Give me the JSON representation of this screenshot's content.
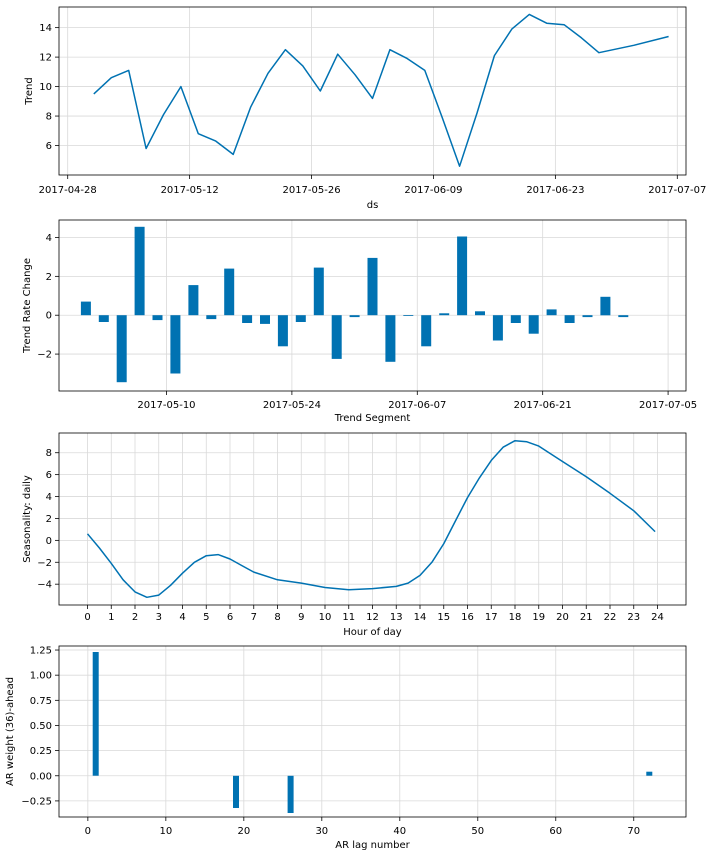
{
  "colors": {
    "series": "#0072B2",
    "grid": "#d9d9d9",
    "axis": "#000000"
  },
  "chart_data": [
    {
      "id": "trend",
      "type": "line",
      "xlabel": "ds",
      "ylabel": "Trend",
      "x_type": "date",
      "xlim": [
        "2017-04-27",
        "2017-07-08"
      ],
      "ylim": [
        4.0,
        15.4
      ],
      "xticks": [
        "2017-04-28",
        "2017-05-12",
        "2017-05-26",
        "2017-06-09",
        "2017-06-23",
        "2017-07-07"
      ],
      "yticks": [
        6,
        8,
        10,
        12,
        14
      ],
      "grid": true,
      "x": [
        "2017-05-01",
        "2017-05-03",
        "2017-05-05",
        "2017-05-07",
        "2017-05-09",
        "2017-05-11",
        "2017-05-13",
        "2017-05-15",
        "2017-05-17",
        "2017-05-19",
        "2017-05-21",
        "2017-05-23",
        "2017-05-25",
        "2017-05-27",
        "2017-05-29",
        "2017-05-31",
        "2017-06-02",
        "2017-06-04",
        "2017-06-06",
        "2017-06-08",
        "2017-06-10",
        "2017-06-12",
        "2017-06-14",
        "2017-06-16",
        "2017-06-18",
        "2017-06-20",
        "2017-06-22",
        "2017-06-24",
        "2017-06-26",
        "2017-06-28",
        "2017-07-02",
        "2017-07-06"
      ],
      "y": [
        9.5,
        10.6,
        11.1,
        5.8,
        8.1,
        10.0,
        6.8,
        6.3,
        5.4,
        8.6,
        10.9,
        12.5,
        11.4,
        9.7,
        12.2,
        10.8,
        9.2,
        12.5,
        11.9,
        11.1,
        7.9,
        4.6,
        8.2,
        12.1,
        13.9,
        14.9,
        14.3,
        14.2,
        13.3,
        12.3,
        12.8,
        13.4
      ]
    },
    {
      "id": "trend-rate-change",
      "type": "bar",
      "xlabel": "Trend Segment",
      "ylabel": "Trend Rate Change",
      "x_type": "date",
      "xlim": [
        "2017-04-28",
        "2017-07-07"
      ],
      "ylim": [
        -3.9,
        4.9
      ],
      "xticks": [
        "2017-05-10",
        "2017-05-24",
        "2017-06-07",
        "2017-06-21",
        "2017-07-05"
      ],
      "yticks": [
        -2,
        0,
        2,
        4
      ],
      "grid": true,
      "x": [
        "2017-05-01",
        "2017-05-03",
        "2017-05-05",
        "2017-05-07",
        "2017-05-09",
        "2017-05-11",
        "2017-05-13",
        "2017-05-15",
        "2017-05-17",
        "2017-05-19",
        "2017-05-21",
        "2017-05-23",
        "2017-05-25",
        "2017-05-27",
        "2017-05-29",
        "2017-05-31",
        "2017-06-02",
        "2017-06-04",
        "2017-06-06",
        "2017-06-08",
        "2017-06-10",
        "2017-06-12",
        "2017-06-14",
        "2017-06-16",
        "2017-06-18",
        "2017-06-20",
        "2017-06-22",
        "2017-06-24",
        "2017-06-26",
        "2017-06-28",
        "2017-06-30"
      ],
      "values": [
        0.7,
        -0.35,
        -3.45,
        4.55,
        -0.25,
        -3.0,
        1.55,
        -0.2,
        2.4,
        -0.4,
        -0.45,
        -1.6,
        -0.35,
        2.45,
        -2.25,
        -0.1,
        2.95,
        -2.4,
        0.0,
        -1.6,
        0.1,
        4.05,
        0.2,
        -1.3,
        -0.4,
        -0.95,
        0.3,
        -0.4,
        -0.1,
        0.95,
        -0.1
      ]
    },
    {
      "id": "seasonality-daily",
      "type": "line",
      "xlabel": "Hour of day",
      "ylabel": "Seasonality: daily",
      "xlim": [
        -1.2,
        25.2
      ],
      "ylim": [
        -5.9,
        9.8
      ],
      "xticks": [
        0,
        1,
        2,
        3,
        4,
        5,
        6,
        7,
        8,
        9,
        10,
        11,
        12,
        13,
        14,
        15,
        16,
        17,
        18,
        19,
        20,
        21,
        22,
        23,
        24
      ],
      "yticks": [
        -4,
        -2,
        0,
        2,
        4,
        6,
        8
      ],
      "grid": true,
      "x": [
        0,
        0.5,
        1,
        1.5,
        2,
        2.5,
        3,
        3.5,
        4,
        4.5,
        5,
        5.5,
        6,
        6.5,
        7,
        8,
        9,
        10,
        11,
        12,
        13,
        13.5,
        14,
        14.5,
        15,
        15.5,
        16,
        16.5,
        17,
        17.5,
        18,
        18.5,
        19,
        20,
        21,
        22,
        23,
        23.9
      ],
      "y": [
        0.6,
        -0.7,
        -2.1,
        -3.6,
        -4.7,
        -5.2,
        -5.0,
        -4.1,
        -3.0,
        -2.0,
        -1.4,
        -1.3,
        -1.7,
        -2.3,
        -2.9,
        -3.6,
        -3.9,
        -4.3,
        -4.5,
        -4.4,
        -4.2,
        -3.9,
        -3.2,
        -2.0,
        -0.3,
        1.8,
        3.9,
        5.7,
        7.3,
        8.5,
        9.1,
        9.0,
        8.6,
        7.2,
        5.8,
        4.3,
        2.7,
        0.8
      ]
    },
    {
      "id": "ar-weights",
      "type": "bar",
      "xlabel": "AR lag number",
      "ylabel": "AR weight (36)-ahead",
      "xlim": [
        -3.7,
        76.7
      ],
      "ylim": [
        -0.41,
        1.29
      ],
      "xticks": [
        0,
        10,
        20,
        30,
        40,
        50,
        60,
        70
      ],
      "yticks": [
        -0.25,
        0.0,
        0.25,
        0.5,
        0.75,
        1.0,
        1.25
      ],
      "ytick_labels": [
        "−0.25",
        "0.00",
        "0.25",
        "0.50",
        "0.75",
        "1.00",
        "1.25"
      ],
      "grid": true,
      "x": [
        1,
        19,
        26,
        72
      ],
      "values": [
        1.23,
        -0.32,
        -0.37,
        0.04
      ]
    }
  ]
}
